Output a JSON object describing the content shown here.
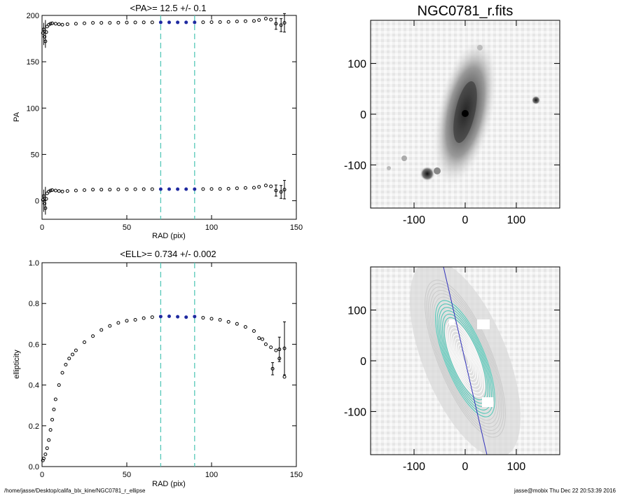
{
  "chart_data": [
    {
      "type": "scatter",
      "title": "<PA>=  12.5 +/-   0.1",
      "xlabel": "RAD (pix)",
      "ylabel": "PA",
      "xlim": [
        0,
        150
      ],
      "ylim": [
        -20,
        200
      ],
      "xticks": [
        "0",
        "50",
        "100",
        "150"
      ],
      "yticks": [
        "0",
        "50",
        "100",
        "150",
        "200"
      ],
      "vlines": [
        70,
        90
      ],
      "vline_color": "#55c8b8",
      "fit_range": [
        70,
        90
      ],
      "series": [
        {
          "points": [
            [
              0.5,
              1
            ],
            [
              1,
              5
            ],
            [
              1.5,
              -3
            ],
            [
              2,
              -8
            ],
            [
              2.5,
              2
            ],
            [
              3,
              8
            ],
            [
              4,
              10
            ],
            [
              5,
              11
            ],
            [
              6,
              11.5
            ],
            [
              8,
              11
            ],
            [
              10,
              10.5
            ],
            [
              12,
              10
            ],
            [
              15,
              10.5
            ],
            [
              20,
              11
            ],
            [
              25,
              11.5
            ],
            [
              30,
              12
            ],
            [
              35,
              12
            ],
            [
              40,
              12
            ],
            [
              45,
              12.2
            ],
            [
              50,
              12.3
            ],
            [
              55,
              12.4
            ],
            [
              60,
              12.5
            ],
            [
              65,
              12.5
            ],
            [
              70,
              12.5
            ],
            [
              75,
              12.5
            ],
            [
              80,
              12.5
            ],
            [
              85,
              12.5
            ],
            [
              90,
              12.5
            ],
            [
              95,
              12.6
            ],
            [
              100,
              12.7
            ],
            [
              105,
              12.8
            ],
            [
              110,
              13
            ],
            [
              115,
              13.5
            ],
            [
              120,
              13.8
            ],
            [
              125,
              14
            ],
            [
              128,
              15
            ],
            [
              132,
              16.5
            ],
            [
              135,
              15.5
            ],
            [
              138,
              11
            ],
            [
              141,
              9.5
            ],
            [
              143,
              12
            ]
          ],
          "upper_branch_offset": 180,
          "errors": [
            [
              138,
              6
            ],
            [
              141,
              7
            ],
            [
              143,
              10
            ]
          ]
        }
      ]
    },
    {
      "type": "scatter",
      "title": "<ELL>= 0.734 +/-  0.002",
      "xlabel": "RAD (pix)",
      "ylabel": "ellipticity",
      "xlim": [
        0,
        150
      ],
      "ylim": [
        0,
        1
      ],
      "xticks": [
        "0",
        "50",
        "100",
        "150"
      ],
      "yticks": [
        "0.0",
        "0.2",
        "0.4",
        "0.6",
        "0.8",
        "1.0"
      ],
      "vlines": [
        70,
        90
      ],
      "vline_color": "#55c8b8",
      "fit_range": [
        70,
        90
      ],
      "series": [
        {
          "points": [
            [
              0.5,
              0.03
            ],
            [
              1,
              0.04
            ],
            [
              2,
              0.06
            ],
            [
              3,
              0.09
            ],
            [
              4,
              0.13
            ],
            [
              5,
              0.18
            ],
            [
              6,
              0.23
            ],
            [
              7,
              0.28
            ],
            [
              8,
              0.33
            ],
            [
              10,
              0.4
            ],
            [
              12,
              0.46
            ],
            [
              14,
              0.5
            ],
            [
              16,
              0.53
            ],
            [
              18,
              0.55
            ],
            [
              20,
              0.57
            ],
            [
              25,
              0.61
            ],
            [
              30,
              0.64
            ],
            [
              35,
              0.67
            ],
            [
              40,
              0.69
            ],
            [
              45,
              0.705
            ],
            [
              50,
              0.715
            ],
            [
              55,
              0.72
            ],
            [
              60,
              0.728
            ],
            [
              65,
              0.733
            ],
            [
              70,
              0.736
            ],
            [
              75,
              0.737
            ],
            [
              80,
              0.735
            ],
            [
              85,
              0.733
            ],
            [
              90,
              0.736
            ],
            [
              95,
              0.73
            ],
            [
              100,
              0.725
            ],
            [
              105,
              0.72
            ],
            [
              110,
              0.71
            ],
            [
              115,
              0.7
            ],
            [
              120,
              0.685
            ],
            [
              125,
              0.665
            ],
            [
              128,
              0.63
            ],
            [
              130,
              0.625
            ],
            [
              132,
              0.6
            ],
            [
              135,
              0.585
            ],
            [
              138,
              0.57
            ],
            [
              140,
              0.575
            ],
            [
              143,
              0.58
            ],
            [
              136,
              0.48
            ],
            [
              140,
              0.53
            ],
            [
              143,
              0.44
            ]
          ],
          "errors": [
            [
              136,
              0.03
            ],
            [
              140,
              0.06
            ],
            [
              143,
              0.13
            ]
          ]
        }
      ]
    },
    {
      "type": "heatmap",
      "title": "NGC0781_r.fits",
      "xlim": [
        -185,
        185
      ],
      "ylim": [
        -185,
        185
      ],
      "xticks": [
        "-100",
        "0",
        "100"
      ],
      "yticks": [
        "-100",
        "0",
        "100"
      ],
      "galaxy_pa_deg": 12.5,
      "galaxy_ellipticity": 0.734
    },
    {
      "type": "heatmap",
      "title": "",
      "xlim": [
        -185,
        185
      ],
      "ylim": [
        -185,
        185
      ],
      "xticks": [
        "-100",
        "0",
        "100"
      ],
      "yticks": [
        "-100",
        "0",
        "100"
      ],
      "contour_colors": [
        "#cccccc",
        "#55c8b8",
        "#ffffff"
      ],
      "axis_line_color": "#3333bb"
    }
  ],
  "footer": {
    "left": "/home/jasse/Desktop/califa_blx_kine/NGC0781_r_ellipse",
    "right": "jasse@mobix  Thu Dec 22 20:53:39 2016"
  },
  "colors": {
    "marker": "#000000",
    "fit_marker": "#1f2aa0",
    "dashed_line": "#55c8b8"
  }
}
